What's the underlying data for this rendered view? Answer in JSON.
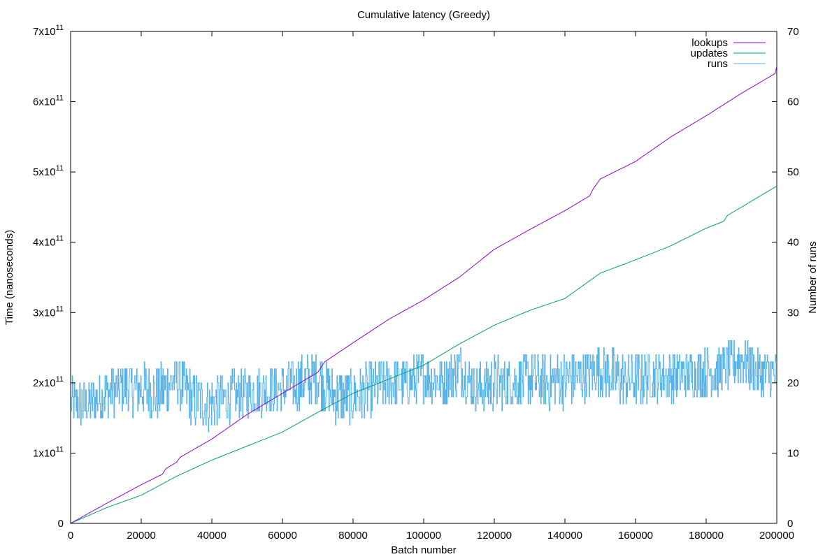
{
  "chart_data": {
    "type": "line",
    "title": "Cumulative latency (Greedy)",
    "xlabel": "Batch number",
    "ylabel": "Time (nanoseconds)",
    "y2label": "Number of runs",
    "xlim": [
      0,
      200000
    ],
    "ylim": [
      0,
      700000000000
    ],
    "y2lim": [
      0,
      70
    ],
    "xticks": [
      "0",
      "20000",
      "40000",
      "60000",
      "80000",
      "100000",
      "120000",
      "140000",
      "160000",
      "180000",
      "200000"
    ],
    "yticks": [
      {
        "mant": "0",
        "exp": ""
      },
      {
        "mant": "1x10",
        "exp": "11"
      },
      {
        "mant": "2x10",
        "exp": "11"
      },
      {
        "mant": "3x10",
        "exp": "11"
      },
      {
        "mant": "4x10",
        "exp": "11"
      },
      {
        "mant": "5x10",
        "exp": "11"
      },
      {
        "mant": "6x10",
        "exp": "11"
      },
      {
        "mant": "7x10",
        "exp": "11"
      }
    ],
    "y2ticks": [
      "0",
      "10",
      "20",
      "30",
      "40",
      "50",
      "60",
      "70"
    ],
    "grid": false,
    "legend_position": "top-right",
    "series": [
      {
        "name": "lookups",
        "axis": "left",
        "color": "#9400d3",
        "x": [
          0,
          10000,
          20000,
          26000,
          27000,
          30000,
          31000,
          40000,
          50000,
          60000,
          70000,
          72000,
          80000,
          90000,
          100000,
          110000,
          115000,
          120000,
          130000,
          140000,
          147000,
          148000,
          150000,
          160000,
          170000,
          180000,
          190000,
          199500,
          200000
        ],
        "y": [
          0,
          28000000000,
          55000000000,
          70000000000,
          78000000000,
          87000000000,
          94000000000,
          120000000000,
          155000000000,
          185000000000,
          215000000000,
          230000000000,
          257000000000,
          290000000000,
          318000000000,
          350000000000,
          370000000000,
          390000000000,
          418000000000,
          445000000000,
          466000000000,
          476000000000,
          490000000000,
          515000000000,
          550000000000,
          580000000000,
          612000000000,
          640000000000,
          650000000000
        ]
      },
      {
        "name": "updates",
        "axis": "left",
        "color": "#009e73",
        "x": [
          0,
          10000,
          20000,
          30000,
          40000,
          50000,
          60000,
          70000,
          80000,
          90000,
          100000,
          105000,
          110000,
          120000,
          130000,
          140000,
          150000,
          160000,
          170000,
          180000,
          185000,
          186000,
          190000,
          200000
        ],
        "y": [
          0,
          22000000000,
          40000000000,
          67000000000,
          90000000000,
          110000000000,
          130000000000,
          158000000000,
          185000000000,
          205000000000,
          225000000000,
          240000000000,
          255000000000,
          282000000000,
          303000000000,
          320000000000,
          356000000000,
          375000000000,
          395000000000,
          420000000000,
          430000000000,
          438000000000,
          450000000000,
          480000000000
        ]
      },
      {
        "name": "runs",
        "axis": "right",
        "color": "#56b4e9",
        "x": [
          0,
          5000,
          10000,
          15000,
          20000,
          25000,
          30000,
          35000,
          40000,
          45000,
          50000,
          55000,
          60000,
          65000,
          70000,
          75000,
          80000,
          85000,
          90000,
          95000,
          100000,
          105000,
          110000,
          115000,
          120000,
          125000,
          130000,
          135000,
          140000,
          145000,
          150000,
          155000,
          160000,
          165000,
          170000,
          175000,
          180000,
          185000,
          190000,
          195000,
          200000
        ],
        "y": [
          17,
          17,
          18.5,
          19.5,
          19,
          18.5,
          20.5,
          17.5,
          17,
          18,
          18.5,
          19,
          19,
          20,
          21,
          18,
          18,
          19,
          20,
          20,
          21,
          20,
          22,
          19,
          20,
          20,
          20.5,
          20,
          20.5,
          21,
          22,
          20.5,
          20.5,
          21,
          21,
          21,
          21.5,
          22,
          23.5,
          21,
          21.5
        ],
        "min": [
          13,
          13,
          14,
          14,
          14,
          14,
          14,
          13,
          13,
          14,
          14,
          15,
          15,
          15,
          15,
          14,
          14,
          15,
          16,
          16,
          16,
          16,
          17,
          15,
          15,
          16,
          16,
          16,
          16,
          17,
          17,
          16,
          16,
          17,
          17,
          17,
          17,
          18,
          19,
          17,
          18
        ],
        "max": [
          21,
          21,
          22,
          22,
          23,
          23,
          23,
          22,
          22,
          22,
          22,
          23,
          23,
          24,
          24,
          23,
          23,
          24,
          24,
          24,
          24,
          24,
          25,
          23,
          24,
          24,
          25,
          25,
          25,
          25,
          26,
          25,
          25,
          25,
          25,
          25,
          26,
          26,
          27,
          25,
          25
        ]
      }
    ]
  }
}
